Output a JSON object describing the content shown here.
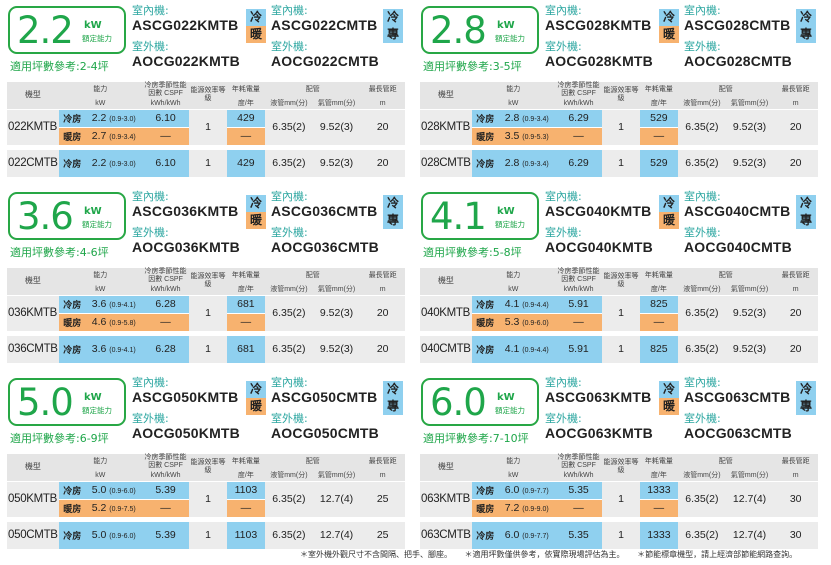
{
  "labels": {
    "capacity_unit": "kW",
    "capacity_label": "額定能力",
    "applicable_prefix": "適用坪數參考:",
    "indoor": "室內機:",
    "outdoor": "室外機:",
    "tag_cool": "冷",
    "tag_heat": "暖",
    "tag_only": "專",
    "dash": "—",
    "mode_cool": "冷房",
    "mode_heat": "暖房"
  },
  "table_header": {
    "model": "機型",
    "capacity": "能力",
    "cspf": "冷房季節性能因數 CSPF",
    "efficiency": "能源效率等級",
    "annual": "年耗電量",
    "piping": "配管",
    "max_pipe": "最長管距",
    "unit_kw": "kW",
    "unit_kwh": "kWh/kWh",
    "unit_annual": "度/年",
    "liquid": "液管mm(分)",
    "gas": "氣管mm(分)",
    "unit_m": "m"
  },
  "cards": [
    {
      "capacity": "2.2",
      "area": "2-4坪",
      "hp": {
        "indoor": "ASCG022KMTB",
        "outdoor": "AOCG022KMTB"
      },
      "co": {
        "indoor": "ASCG022CMTB",
        "outdoor": "AOCG022CMTB"
      },
      "rows": {
        "hp_name": "022KMTB",
        "co_name": "022CMTB",
        "cool_cap": "2.2",
        "cool_range": "(0.9-3.0)",
        "heat_cap": "2.7",
        "heat_range": "(0.9-3.4)",
        "cspf": "6.10",
        "grade": "1",
        "annual": "429",
        "co_cap": "2.2",
        "co_range": "(0.9-3.0)",
        "liquid": "6.35(2)",
        "gas": "9.52(3)",
        "max_pipe": "20"
      }
    },
    {
      "capacity": "2.8",
      "area": "3-5坪",
      "hp": {
        "indoor": "ASCG028KMTB",
        "outdoor": "AOCG028KMTB"
      },
      "co": {
        "indoor": "ASCG028CMTB",
        "outdoor": "AOCG028CMTB"
      },
      "rows": {
        "hp_name": "028KMTB",
        "co_name": "028CMTB",
        "cool_cap": "2.8",
        "cool_range": "(0.9-3.4)",
        "heat_cap": "3.5",
        "heat_range": "(0.9-5.3)",
        "cspf": "6.29",
        "grade": "1",
        "annual": "529",
        "co_cap": "2.8",
        "co_range": "(0.9-3.4)",
        "liquid": "6.35(2)",
        "gas": "9.52(3)",
        "max_pipe": "20"
      }
    },
    {
      "capacity": "3.6",
      "area": "4-6坪",
      "hp": {
        "indoor": "ASCG036KMTB",
        "outdoor": "AOCG036KMTB"
      },
      "co": {
        "indoor": "ASCG036CMTB",
        "outdoor": "AOCG036CMTB"
      },
      "rows": {
        "hp_name": "036KMTB",
        "co_name": "036CMTB",
        "cool_cap": "3.6",
        "cool_range": "(0.9-4.1)",
        "heat_cap": "4.6",
        "heat_range": "(0.9-5.8)",
        "cspf": "6.28",
        "grade": "1",
        "annual": "681",
        "co_cap": "3.6",
        "co_range": "(0.9-4.1)",
        "liquid": "6.35(2)",
        "gas": "9.52(3)",
        "max_pipe": "20"
      }
    },
    {
      "capacity": "4.1",
      "area": "5-8坪",
      "hp": {
        "indoor": "ASCG040KMTB",
        "outdoor": "AOCG040KMTB"
      },
      "co": {
        "indoor": "ASCG040CMTB",
        "outdoor": "AOCG040CMTB"
      },
      "rows": {
        "hp_name": "040KMTB",
        "co_name": "040CMTB",
        "cool_cap": "4.1",
        "cool_range": "(0.9-4.4)",
        "heat_cap": "5.3",
        "heat_range": "(0.9-6.0)",
        "cspf": "5.91",
        "grade": "1",
        "annual": "825",
        "co_cap": "4.1",
        "co_range": "(0.9-4.4)",
        "liquid": "6.35(2)",
        "gas": "9.52(3)",
        "max_pipe": "20"
      }
    },
    {
      "capacity": "5.0",
      "area": "6-9坪",
      "hp": {
        "indoor": "ASCG050KMTB",
        "outdoor": "AOCG050KMTB"
      },
      "co": {
        "indoor": "ASCG050CMTB",
        "outdoor": "AOCG050CMTB"
      },
      "rows": {
        "hp_name": "050KMTB",
        "co_name": "050CMTB",
        "cool_cap": "5.0",
        "cool_range": "(0.9-6.0)",
        "heat_cap": "5.2",
        "heat_range": "(0.9-7.5)",
        "cspf": "5.39",
        "grade": "1",
        "annual": "1103",
        "co_cap": "5.0",
        "co_range": "(0.9-6.0)",
        "liquid": "6.35(2)",
        "gas": "12.7(4)",
        "max_pipe": "25"
      }
    },
    {
      "capacity": "6.0",
      "area": "7-10坪",
      "hp": {
        "indoor": "ASCG063KMTB",
        "outdoor": "AOCG063KMTB"
      },
      "co": {
        "indoor": "ASCG063CMTB",
        "outdoor": "AOCG063CMTB"
      },
      "rows": {
        "hp_name": "063KMTB",
        "co_name": "063CMTB",
        "cool_cap": "6.0",
        "cool_range": "(0.9-7.7)",
        "heat_cap": "7.2",
        "heat_range": "(0.9-9.0)",
        "cspf": "5.35",
        "grade": "1",
        "annual": "1333",
        "co_cap": "6.0",
        "co_range": "(0.9-7.7)",
        "liquid": "6.35(2)",
        "gas": "12.7(4)",
        "max_pipe": "30"
      }
    }
  ],
  "footnotes": [
    "＊室外機外觀尺寸不含間隔、把手、腳座。",
    "＊適用坪數僅供參考，依實際現場評估為主。",
    "＊節能標章機型，請上經濟部節能網路查詢。"
  ]
}
